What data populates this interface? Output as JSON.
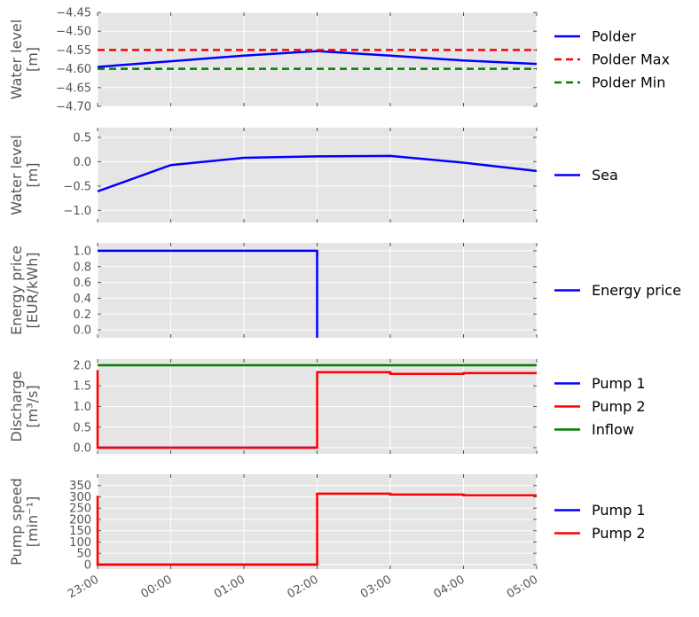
{
  "chart_data": [
    {
      "type": "line",
      "ylabel": [
        "Water level",
        "[m]"
      ],
      "ylim": [
        -4.7,
        -4.45
      ],
      "yticks": [
        -4.7,
        -4.65,
        -4.6,
        -4.55,
        -4.5,
        -4.45
      ],
      "ytick_labels": [
        "−4.70",
        "−4.65",
        "−4.60",
        "−4.55",
        "−4.50",
        "−4.45"
      ],
      "grid": true,
      "legend_position": "right",
      "series": [
        {
          "name": "Polder",
          "color": "#0000ff",
          "dash": "solid",
          "step": false,
          "points": [
            [
              "23:00",
              -4.595
            ],
            [
              "00:00",
              -4.58
            ],
            [
              "01:00",
              -4.565
            ],
            [
              "02:00",
              -4.553
            ],
            [
              "03:00",
              -4.565
            ],
            [
              "04:00",
              -4.578
            ],
            [
              "05:00",
              -4.587
            ]
          ]
        },
        {
          "name": "Polder Max",
          "color": "#ff0000",
          "dash": "dashed",
          "step": false,
          "points": [
            [
              "23:00",
              -4.55
            ],
            [
              "05:00",
              -4.55
            ]
          ]
        },
        {
          "name": "Polder Min",
          "color": "#008000",
          "dash": "dashed",
          "step": false,
          "points": [
            [
              "23:00",
              -4.6
            ],
            [
              "05:00",
              -4.6
            ]
          ]
        }
      ]
    },
    {
      "type": "line",
      "ylabel": [
        "Water level",
        "[m]"
      ],
      "ylim": [
        -1.25,
        0.7
      ],
      "yticks": [
        -1.0,
        -0.5,
        0.0,
        0.5
      ],
      "ytick_labels": [
        "−1.0",
        "−0.5",
        "0.0",
        "0.5"
      ],
      "grid": true,
      "legend_position": "right",
      "series": [
        {
          "name": "Sea",
          "color": "#0000ff",
          "dash": "solid",
          "step": false,
          "points": [
            [
              "23:00",
              -0.61
            ],
            [
              "00:00",
              -0.07
            ],
            [
              "01:00",
              0.08
            ],
            [
              "02:00",
              0.11
            ],
            [
              "03:00",
              0.12
            ],
            [
              "04:00",
              -0.02
            ],
            [
              "05:00",
              -0.19
            ]
          ]
        }
      ]
    },
    {
      "type": "line",
      "ylabel": [
        "Energy price",
        "[EUR/kWh]"
      ],
      "ylim": [
        -0.1,
        1.1
      ],
      "yticks": [
        0.0,
        0.2,
        0.4,
        0.6,
        0.8,
        1.0
      ],
      "ytick_labels": [
        "0.0",
        "0.2",
        "0.4",
        "0.6",
        "0.8",
        "1.0"
      ],
      "grid": true,
      "legend_position": "right",
      "series": [
        {
          "name": "Energy price",
          "color": "#0000ff",
          "dash": "solid",
          "step": false,
          "points": [
            [
              "23:00",
              1.0
            ],
            [
              "02:00",
              1.0
            ],
            [
              "02:00",
              -0.1
            ]
          ]
        }
      ]
    },
    {
      "type": "line",
      "ylabel": [
        "Discharge",
        "[m³/s]"
      ],
      "ylim": [
        -0.15,
        2.15
      ],
      "yticks": [
        0.0,
        0.5,
        1.0,
        1.5,
        2.0
      ],
      "ytick_labels": [
        "0.0",
        "0.5",
        "1.0",
        "1.5",
        "2.0"
      ],
      "grid": true,
      "legend_position": "right",
      "series": [
        {
          "name": "Pump 1",
          "color": "#0000ff",
          "dash": "solid",
          "step": false,
          "points": [
            [
              "23:00",
              0.0
            ],
            [
              "02:00",
              0.0
            ]
          ]
        },
        {
          "name": "Pump 2",
          "color": "#ff0000",
          "dash": "solid",
          "step": false,
          "points": [
            [
              "23:00",
              1.88
            ],
            [
              "23:00",
              0.0
            ],
            [
              "02:00",
              0.0
            ],
            [
              "02:00",
              1.83
            ],
            [
              "03:00",
              1.83
            ],
            [
              "03:00",
              1.79
            ],
            [
              "04:00",
              1.79
            ],
            [
              "04:00",
              1.81
            ],
            [
              "05:00",
              1.81
            ]
          ]
        },
        {
          "name": "Inflow",
          "color": "#008000",
          "dash": "solid",
          "step": false,
          "points": [
            [
              "23:00",
              2.0
            ],
            [
              "05:00",
              2.0
            ]
          ]
        }
      ]
    },
    {
      "type": "line",
      "ylabel": [
        "Pump speed",
        "[min⁻¹]"
      ],
      "ylim": [
        -20,
        400
      ],
      "yticks": [
        0,
        50,
        100,
        150,
        200,
        250,
        300,
        350
      ],
      "ytick_labels": [
        "0",
        "50",
        "100",
        "150",
        "200",
        "250",
        "300",
        "350"
      ],
      "xticks": [
        "23:00",
        "00:00",
        "01:00",
        "02:00",
        "03:00",
        "04:00",
        "05:00"
      ],
      "grid": true,
      "legend_position": "right",
      "series": [
        {
          "name": "Pump 1",
          "color": "#0000ff",
          "dash": "solid",
          "step": false,
          "points": [
            [
              "23:00",
              0
            ],
            [
              "02:00",
              0
            ]
          ]
        },
        {
          "name": "Pump 2",
          "color": "#ff0000",
          "dash": "solid",
          "step": false,
          "points": [
            [
              "23:00",
              305
            ],
            [
              "23:00",
              0
            ],
            [
              "02:00",
              0
            ],
            [
              "02:00",
              314
            ],
            [
              "03:00",
              314
            ],
            [
              "03:00",
              310
            ],
            [
              "04:00",
              310
            ],
            [
              "04:00",
              307
            ],
            [
              "05:00",
              307
            ]
          ]
        }
      ]
    }
  ]
}
